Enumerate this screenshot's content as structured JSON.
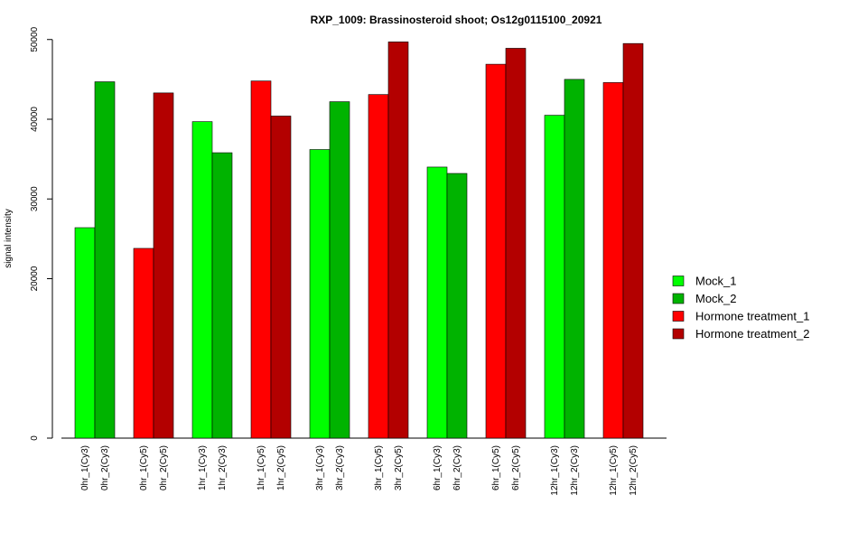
{
  "chart_data": {
    "type": "bar",
    "title": "RXP_1009: Brassinosteroid shoot; Os12g0115100_20921",
    "ylabel": "signal intensity",
    "xlabel": "",
    "ylim": [
      0,
      50000
    ],
    "yticks": [
      0,
      20000,
      30000,
      40000,
      50000
    ],
    "ytick_labels": [
      "0",
      "20000",
      "30000",
      "40000",
      "50000"
    ],
    "grid": false,
    "legend_position": "right",
    "legend": [
      {
        "label": "Mock_1",
        "color": "#00ff00"
      },
      {
        "label": "Mock_2",
        "color": "#00b300"
      },
      {
        "label": "Hormone treatment_1",
        "color": "#ff0000"
      },
      {
        "label": "Hormone treatment_2",
        "color": "#b30000"
      }
    ],
    "groups": [
      {
        "bars": [
          {
            "label": "0hr_1(Cy3)",
            "value": 26400,
            "color": "#00ff00"
          },
          {
            "label": "0hr_2(Cy3)",
            "value": 44700,
            "color": "#00b300"
          }
        ]
      },
      {
        "bars": [
          {
            "label": "0hr_1(Cy5)",
            "value": 23800,
            "color": "#ff0000"
          },
          {
            "label": "0hr_2(Cy5)",
            "value": 43300,
            "color": "#b30000"
          }
        ]
      },
      {
        "bars": [
          {
            "label": "1hr_1(Cy3)",
            "value": 39700,
            "color": "#00ff00"
          },
          {
            "label": "1hr_2(Cy3)",
            "value": 35800,
            "color": "#00b300"
          }
        ]
      },
      {
        "bars": [
          {
            "label": "1hr_1(Cy5)",
            "value": 44800,
            "color": "#ff0000"
          },
          {
            "label": "1hr_2(Cy5)",
            "value": 40400,
            "color": "#b30000"
          }
        ]
      },
      {
        "bars": [
          {
            "label": "3hr_1(Cy3)",
            "value": 36200,
            "color": "#00ff00"
          },
          {
            "label": "3hr_2(Cy3)",
            "value": 42200,
            "color": "#00b300"
          }
        ]
      },
      {
        "bars": [
          {
            "label": "3hr_1(Cy5)",
            "value": 43100,
            "color": "#ff0000"
          },
          {
            "label": "3hr_2(Cy5)",
            "value": 49700,
            "color": "#b30000"
          }
        ]
      },
      {
        "bars": [
          {
            "label": "6hr_1(Cy3)",
            "value": 34000,
            "color": "#00ff00"
          },
          {
            "label": "6hr_2(Cy3)",
            "value": 33200,
            "color": "#00b300"
          }
        ]
      },
      {
        "bars": [
          {
            "label": "6hr_1(Cy5)",
            "value": 46900,
            "color": "#ff0000"
          },
          {
            "label": "6hr_2(Cy5)",
            "value": 48900,
            "color": "#b30000"
          }
        ]
      },
      {
        "bars": [
          {
            "label": "12hr_1(Cy3)",
            "value": 40500,
            "color": "#00ff00"
          },
          {
            "label": "12hr_2(Cy3)",
            "value": 45000,
            "color": "#00b300"
          }
        ]
      },
      {
        "bars": [
          {
            "label": "12hr_1(Cy5)",
            "value": 44600,
            "color": "#ff0000"
          },
          {
            "label": "12hr_2(Cy5)",
            "value": 49500,
            "color": "#b30000"
          }
        ]
      }
    ]
  }
}
